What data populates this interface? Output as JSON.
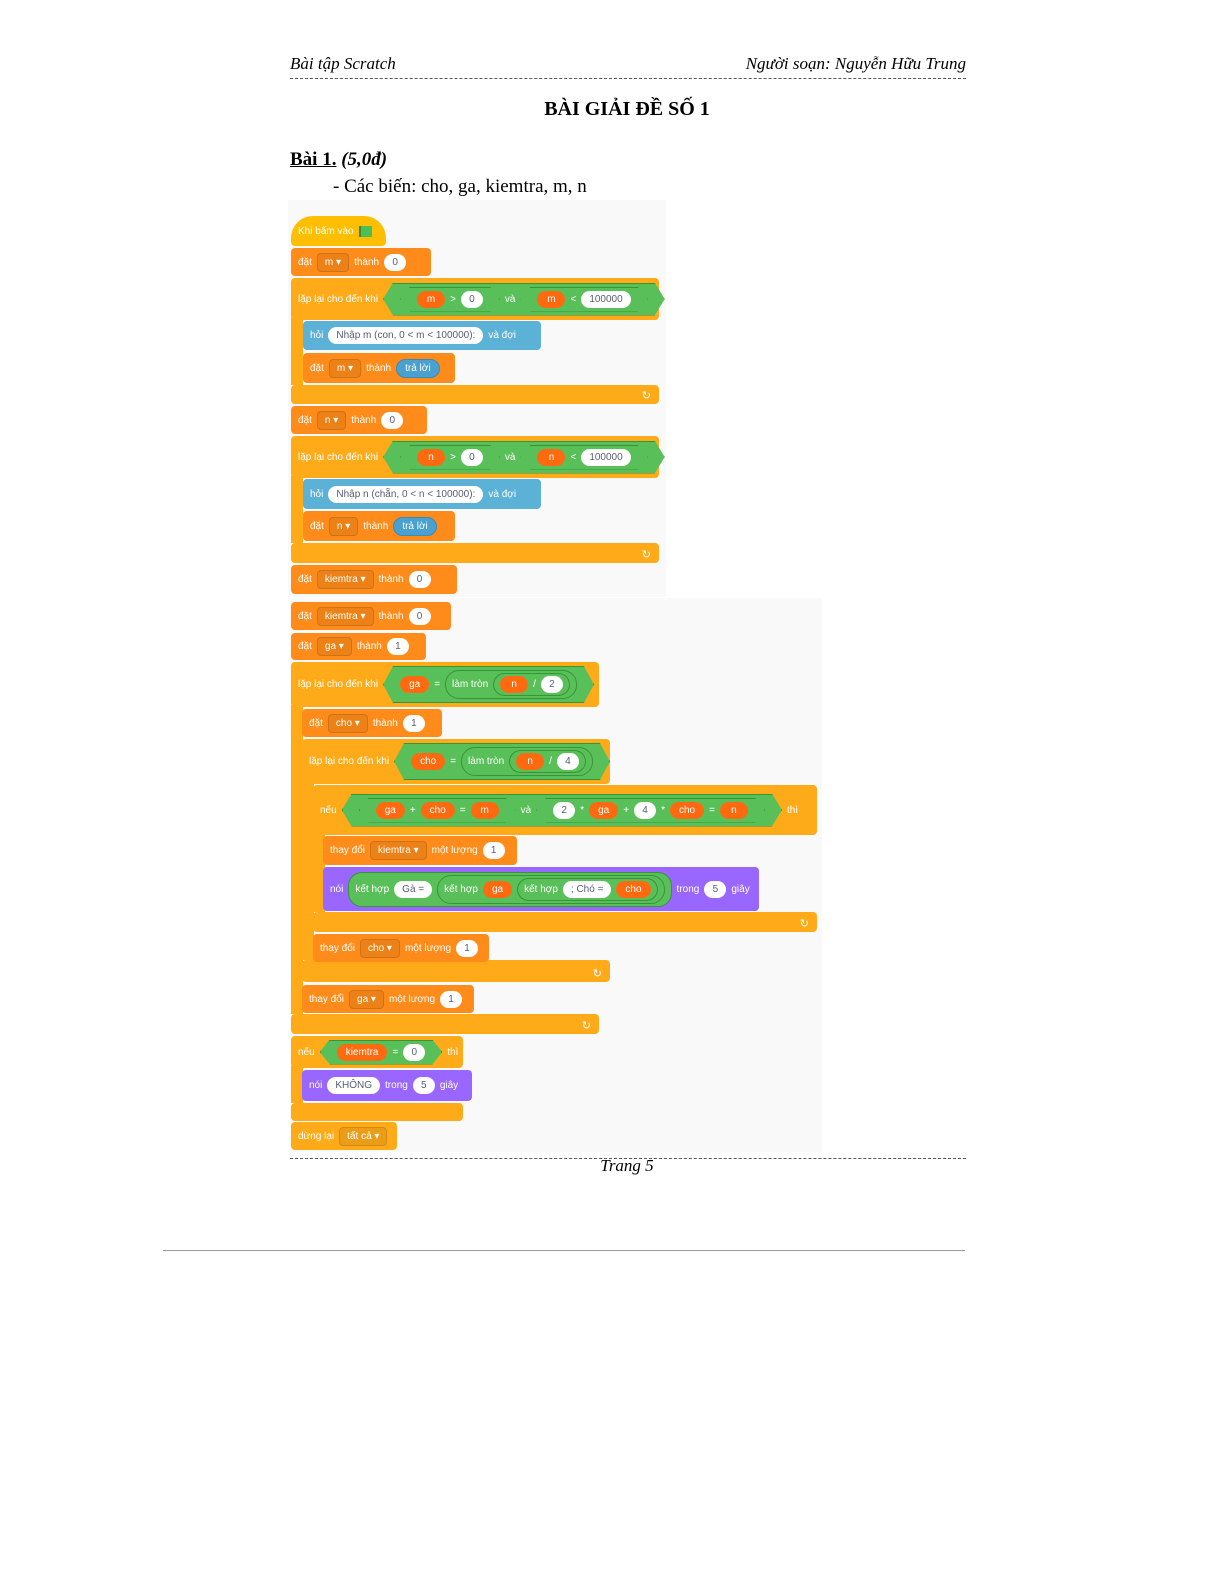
{
  "header": {
    "left": "Bài tập Scratch",
    "right": "Người soạn: Nguyễn Hữu Trung"
  },
  "title": "BÀI GIẢI ĐỀ SỐ 1",
  "exercise": {
    "label": "Bài 1.",
    "points": "(5,0đ)",
    "variables_line": "- Các biến: cho, ga, kiemtra, m, n"
  },
  "footer": {
    "page": "Trang 5"
  },
  "colors": {
    "events": "#ffbf00",
    "variables": "#ff8c1a",
    "control": "#ffab19",
    "sensing": "#5cb1d6",
    "looks": "#9966ff",
    "operators": "#59c059"
  },
  "blocks": [
    {
      "tokens": [
        {
          "t": "label",
          "v": "Khi bấm vào"
        },
        {
          "t": "flag"
        }
      ]
    },
    {
      "tokens": [
        {
          "t": "label",
          "v": "đặt"
        },
        {
          "t": "dd",
          "v": "m"
        },
        {
          "t": "label",
          "v": "thành"
        },
        {
          "t": "num",
          "v": "0"
        }
      ]
    },
    {
      "tokens": [
        {
          "t": "label",
          "v": "lặp lại cho đến khi"
        },
        {
          "t": "bool",
          "items": [
            {
              "t": "bool",
              "items": [
                {
                  "t": "var",
                  "v": "m"
                },
                {
                  "t": "label",
                  "v": ">"
                },
                {
                  "t": "num",
                  "v": "0"
                }
              ]
            },
            {
              "t": "label",
              "v": "và"
            },
            {
              "t": "bool",
              "items": [
                {
                  "t": "var",
                  "v": "m"
                },
                {
                  "t": "label",
                  "v": "<"
                },
                {
                  "t": "num",
                  "v": "100000"
                }
              ]
            }
          ]
        }
      ]
    },
    {
      "tokens": [
        {
          "t": "label",
          "v": "hỏi"
        },
        {
          "t": "num",
          "v": "Nhập m (con, 0 < m < 100000):"
        },
        {
          "t": "label",
          "v": "và đợi"
        }
      ]
    },
    {
      "tokens": [
        {
          "t": "label",
          "v": "đặt"
        },
        {
          "t": "dd",
          "v": "m"
        },
        {
          "t": "label",
          "v": "thành"
        },
        {
          "t": "sense",
          "v": "trả lời"
        }
      ]
    },
    {
      "tokens": [
        {
          "t": "label",
          "v": "đặt"
        },
        {
          "t": "dd",
          "v": "n"
        },
        {
          "t": "label",
          "v": "thành"
        },
        {
          "t": "num",
          "v": "0"
        }
      ]
    },
    {
      "tokens": [
        {
          "t": "label",
          "v": "lặp lại cho đến khi"
        },
        {
          "t": "bool",
          "items": [
            {
              "t": "bool",
              "items": [
                {
                  "t": "var",
                  "v": "n"
                },
                {
                  "t": "label",
                  "v": ">"
                },
                {
                  "t": "num",
                  "v": "0"
                }
              ]
            },
            {
              "t": "label",
              "v": "và"
            },
            {
              "t": "bool",
              "items": [
                {
                  "t": "var",
                  "v": "n"
                },
                {
                  "t": "label",
                  "v": "<"
                },
                {
                  "t": "num",
                  "v": "100000"
                }
              ]
            }
          ]
        }
      ]
    },
    {
      "tokens": [
        {
          "t": "label",
          "v": "hỏi"
        },
        {
          "t": "num",
          "v": "Nhập n (chẵn, 0 < n < 100000):"
        },
        {
          "t": "label",
          "v": "và đợi"
        }
      ]
    },
    {
      "tokens": [
        {
          "t": "label",
          "v": "đặt"
        },
        {
          "t": "dd",
          "v": "n"
        },
        {
          "t": "label",
          "v": "thành"
        },
        {
          "t": "sense",
          "v": "trả lời"
        }
      ]
    },
    {
      "tokens": [
        {
          "t": "label",
          "v": "đặt"
        },
        {
          "t": "dd",
          "v": "kiemtra"
        },
        {
          "t": "label",
          "v": "thành"
        },
        {
          "t": "num",
          "v": "0"
        }
      ]
    },
    {
      "tokens": [
        {
          "t": "label",
          "v": "đặt"
        },
        {
          "t": "dd",
          "v": "kiemtra"
        },
        {
          "t": "label",
          "v": "thành"
        },
        {
          "t": "num",
          "v": "0"
        }
      ]
    },
    {
      "tokens": [
        {
          "t": "label",
          "v": "đặt"
        },
        {
          "t": "dd",
          "v": "ga"
        },
        {
          "t": "label",
          "v": "thành"
        },
        {
          "t": "num",
          "v": "1"
        }
      ]
    },
    {
      "tokens": [
        {
          "t": "label",
          "v": "lặp lại cho đến khi"
        },
        {
          "t": "bool",
          "items": [
            {
              "t": "var",
              "v": "ga"
            },
            {
              "t": "label",
              "v": "="
            },
            {
              "t": "op",
              "items": [
                {
                  "t": "label",
                  "v": "làm tròn"
                },
                {
                  "t": "op",
                  "items": [
                    {
                      "t": "var",
                      "v": "n"
                    },
                    {
                      "t": "label",
                      "v": "/"
                    },
                    {
                      "t": "num",
                      "v": "2"
                    }
                  ]
                }
              ]
            }
          ]
        }
      ]
    },
    {
      "tokens": [
        {
          "t": "label",
          "v": "đặt"
        },
        {
          "t": "dd",
          "v": "cho"
        },
        {
          "t": "label",
          "v": "thành"
        },
        {
          "t": "num",
          "v": "1"
        }
      ]
    },
    {
      "tokens": [
        {
          "t": "label",
          "v": "lặp lại cho đến khi"
        },
        {
          "t": "bool",
          "items": [
            {
              "t": "var",
              "v": "cho"
            },
            {
              "t": "label",
              "v": "="
            },
            {
              "t": "op",
              "items": [
                {
                  "t": "label",
                  "v": "làm tròn"
                },
                {
                  "t": "op",
                  "items": [
                    {
                      "t": "var",
                      "v": "n"
                    },
                    {
                      "t": "label",
                      "v": "/"
                    },
                    {
                      "t": "num",
                      "v": "4"
                    }
                  ]
                }
              ]
            }
          ]
        }
      ]
    },
    {
      "tokens": [
        {
          "t": "label",
          "v": "nếu"
        },
        {
          "t": "bool",
          "items": [
            {
              "t": "bool",
              "items": [
                {
                  "t": "var",
                  "v": "ga"
                },
                {
                  "t": "label",
                  "v": "+"
                },
                {
                  "t": "var",
                  "v": "cho"
                },
                {
                  "t": "label",
                  "v": "="
                },
                {
                  "t": "var",
                  "v": "m"
                }
              ]
            },
            {
              "t": "label",
              "v": "và"
            },
            {
              "t": "bool",
              "items": [
                {
                  "t": "num",
                  "v": "2"
                },
                {
                  "t": "label",
                  "v": "*"
                },
                {
                  "t": "var",
                  "v": "ga"
                },
                {
                  "t": "label",
                  "v": "+"
                },
                {
                  "t": "num",
                  "v": "4"
                },
                {
                  "t": "label",
                  "v": "*"
                },
                {
                  "t": "var",
                  "v": "cho"
                },
                {
                  "t": "label",
                  "v": "="
                },
                {
                  "t": "var",
                  "v": "n"
                }
              ]
            }
          ]
        },
        {
          "t": "label",
          "v": "thì"
        }
      ]
    },
    {
      "tokens": [
        {
          "t": "label",
          "v": "thay đổi"
        },
        {
          "t": "dd",
          "v": "kiemtra"
        },
        {
          "t": "label",
          "v": "một lượng"
        },
        {
          "t": "num",
          "v": "1"
        }
      ]
    },
    {
      "tokens": [
        {
          "t": "label",
          "v": "nói"
        },
        {
          "t": "op",
          "items": [
            {
              "t": "label",
              "v": "kết hợp"
            },
            {
              "t": "num",
              "v": "Gà ="
            },
            {
              "t": "op",
              "items": [
                {
                  "t": "label",
                  "v": "kết hợp"
                },
                {
                  "t": "var",
                  "v": "ga"
                },
                {
                  "t": "op",
                  "items": [
                    {
                      "t": "label",
                      "v": "kết hợp"
                    },
                    {
                      "t": "num",
                      "v": "; Chó ="
                    },
                    {
                      "t": "var",
                      "v": "cho"
                    }
                  ]
                }
              ]
            }
          ]
        },
        {
          "t": "label",
          "v": "trong"
        },
        {
          "t": "num",
          "v": "5"
        },
        {
          "t": "label",
          "v": "giây"
        }
      ]
    },
    {
      "tokens": [
        {
          "t": "label",
          "v": "thay đổi"
        },
        {
          "t": "dd",
          "v": "cho"
        },
        {
          "t": "label",
          "v": "một lượng"
        },
        {
          "t": "num",
          "v": "1"
        }
      ]
    },
    {
      "tokens": [
        {
          "t": "label",
          "v": "thay đổi"
        },
        {
          "t": "dd",
          "v": "ga"
        },
        {
          "t": "label",
          "v": "một lượng"
        },
        {
          "t": "num",
          "v": "1"
        }
      ]
    },
    {
      "tokens": [
        {
          "t": "label",
          "v": "nếu"
        },
        {
          "t": "bool",
          "items": [
            {
              "t": "var",
              "v": "kiemtra"
            },
            {
              "t": "label",
              "v": "="
            },
            {
              "t": "num",
              "v": "0"
            }
          ]
        },
        {
          "t": "label",
          "v": "thì"
        }
      ]
    },
    {
      "tokens": [
        {
          "t": "label",
          "v": "nói"
        },
        {
          "t": "num",
          "v": "KHÔNG"
        },
        {
          "t": "label",
          "v": "trong"
        },
        {
          "t": "num",
          "v": "5"
        },
        {
          "t": "label",
          "v": "giây"
        }
      ]
    },
    {
      "tokens": [
        {
          "t": "label",
          "v": "dừng lại"
        },
        {
          "t": "dd",
          "v": "tất cả"
        }
      ]
    }
  ]
}
